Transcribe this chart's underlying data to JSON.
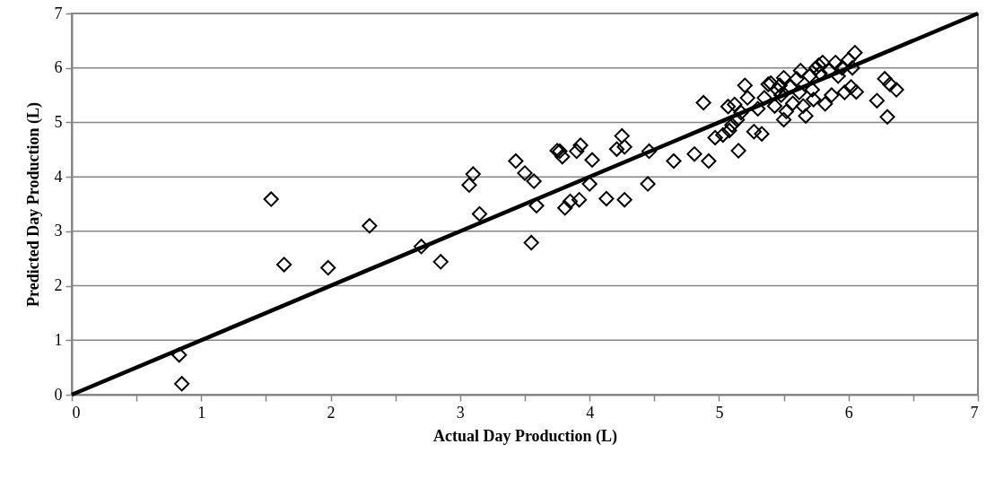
{
  "chart_data": {
    "type": "scatter",
    "xlabel": "Actual Day Production (L)",
    "ylabel": "Predicted Day Production (L)",
    "xlim": [
      0,
      7
    ],
    "ylim": [
      0,
      7
    ],
    "xticks": [
      0,
      {
        "value": 0.5,
        "label": null
      },
      1,
      {
        "value": 1.5,
        "label": null
      },
      2,
      {
        "value": 2.5,
        "label": null
      },
      3,
      {
        "value": 3.5,
        "label": null
      },
      4,
      {
        "value": 4.5,
        "label": null
      },
      5,
      {
        "value": 5.5,
        "label": null
      },
      6,
      {
        "value": 6.5,
        "label": null
      },
      7
    ],
    "yticks": [
      0,
      1,
      2,
      3,
      4,
      5,
      6,
      7
    ],
    "grid": "y",
    "series": [
      {
        "type": "scatter",
        "color": "#000000",
        "marker": "diamond",
        "x": [
          0.83,
          0.85,
          1.54,
          1.64,
          1.98,
          2.3,
          2.7,
          2.85,
          3.07,
          3.1,
          3.15,
          3.43,
          3.5,
          3.55,
          3.57,
          3.59,
          3.75,
          3.77,
          3.79,
          3.81,
          3.85,
          3.9,
          3.92,
          3.93,
          4.0,
          4.02,
          4.13,
          4.21,
          4.25,
          4.27,
          4.27,
          4.45,
          4.46,
          4.65,
          4.81,
          4.88,
          4.92,
          4.97,
          5.03,
          5.07,
          5.08,
          5.1,
          5.12,
          5.14,
          5.15,
          5.17,
          5.2,
          5.22,
          5.27,
          5.3,
          5.33,
          5.35,
          5.38,
          5.4,
          5.43,
          5.45,
          5.47,
          5.48,
          5.5,
          5.5,
          5.52,
          5.55,
          5.57,
          5.6,
          5.62,
          5.63,
          5.65,
          5.67,
          5.7,
          5.72,
          5.73,
          5.75,
          5.77,
          5.78,
          5.8,
          5.82,
          5.85,
          5.87,
          5.9,
          5.92,
          5.95,
          5.97,
          6.0,
          6.02,
          6.03,
          6.05,
          6.06,
          6.22,
          6.28,
          6.3,
          6.32,
          6.37
        ],
        "values": [
          0.73,
          0.2,
          3.59,
          2.39,
          2.33,
          3.1,
          2.72,
          2.44,
          3.85,
          4.05,
          3.32,
          4.29,
          4.07,
          2.79,
          3.92,
          3.47,
          4.48,
          4.47,
          4.37,
          3.43,
          3.55,
          4.47,
          3.58,
          4.58,
          3.87,
          4.31,
          3.6,
          4.51,
          4.75,
          3.58,
          4.55,
          3.87,
          4.47,
          4.29,
          4.42,
          5.36,
          4.29,
          4.72,
          4.77,
          5.29,
          4.85,
          4.95,
          5.33,
          5.05,
          4.48,
          5.18,
          5.68,
          5.45,
          4.83,
          5.25,
          4.79,
          5.45,
          5.7,
          5.72,
          5.3,
          5.6,
          5.68,
          5.5,
          5.05,
          5.82,
          5.2,
          5.65,
          5.35,
          5.8,
          5.55,
          5.95,
          5.3,
          5.12,
          5.85,
          5.6,
          5.42,
          6.0,
          6.05,
          5.9,
          6.1,
          5.34,
          5.95,
          5.5,
          6.1,
          5.85,
          6.0,
          5.55,
          6.15,
          5.65,
          6.0,
          6.28,
          5.56,
          5.4,
          5.8,
          5.1,
          5.7,
          5.6
        ]
      },
      {
        "type": "line",
        "color": "#000000",
        "x": [
          0,
          7
        ],
        "values": [
          0,
          7
        ]
      }
    ]
  }
}
